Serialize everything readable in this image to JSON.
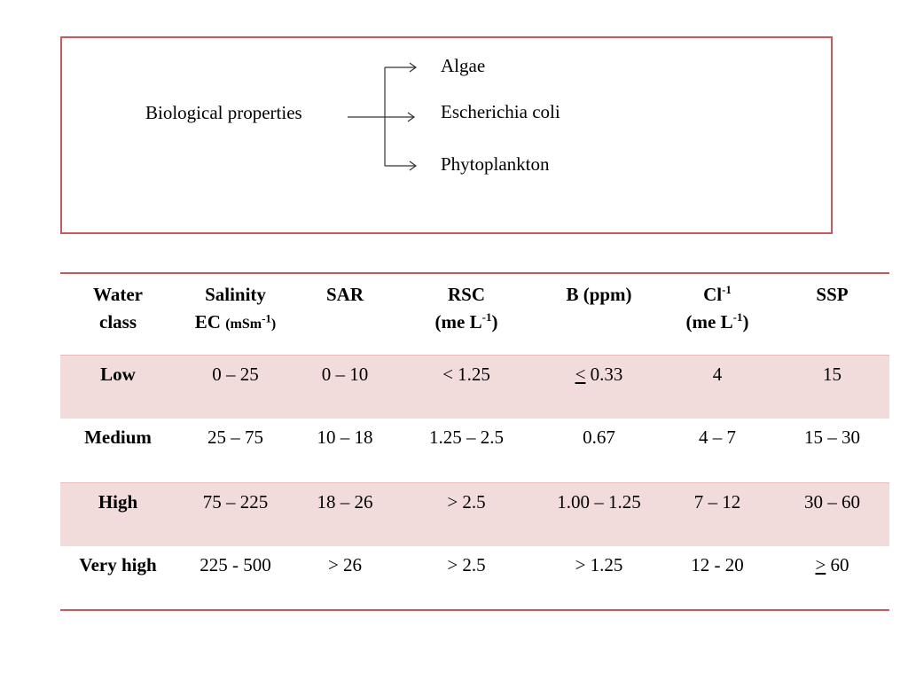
{
  "diagram": {
    "source": "Biological properties",
    "targets": [
      "Algae",
      "Escherichia coli",
      "Phytoplankton"
    ]
  },
  "table": {
    "headers": {
      "water_class_1": "Water",
      "water_class_2": "class",
      "salinity_1": "Salinity",
      "salinity_ec": "EC",
      "salinity_unit_pre": "(mSm",
      "salinity_unit_sup": "-1",
      "salinity_unit_post": ")",
      "sar": "SAR",
      "rsc_1": "RSC",
      "rsc_unit_pre": "(me L",
      "rsc_unit_sup": "-1",
      "rsc_unit_post": ")",
      "b": "B (ppm)",
      "cl_pre": "Cl",
      "cl_sup": "-1",
      "cl_unit_pre": "(me L",
      "cl_unit_sup": "-1",
      "cl_unit_post": ")",
      "ssp": "SSP"
    },
    "rows": [
      {
        "class": "Low",
        "salinity": "0 – 25",
        "sar": "0 – 10",
        "rsc": "< 1.25",
        "b_symbol": "<",
        "b_value": " 0.33",
        "cl": "4",
        "ssp_symbol": "",
        "ssp_value": "15"
      },
      {
        "class": "Medium",
        "salinity": "25 – 75",
        "sar": "10 – 18",
        "rsc": "1.25 – 2.5",
        "b_symbol": "",
        "b_value": "0.67",
        "cl": "4 – 7",
        "ssp_symbol": "",
        "ssp_value": "15 – 30"
      },
      {
        "class": "High",
        "salinity": "75 – 225",
        "sar": "18 – 26",
        "rsc": "> 2.5",
        "b_symbol": "",
        "b_value": "1.00 – 1.25",
        "cl": "7 – 12",
        "ssp_symbol": "",
        "ssp_value": "30 – 60"
      },
      {
        "class": "Very high",
        "salinity": "225 - 500",
        "sar": "> 26",
        "rsc": "> 2.5",
        "b_symbol": "",
        "b_value": "> 1.25",
        "cl": "12 - 20",
        "ssp_symbol": ">",
        "ssp_value": " 60"
      }
    ]
  },
  "colors": {
    "border": "#c9585d",
    "row_shade": "#f2dcdb"
  }
}
